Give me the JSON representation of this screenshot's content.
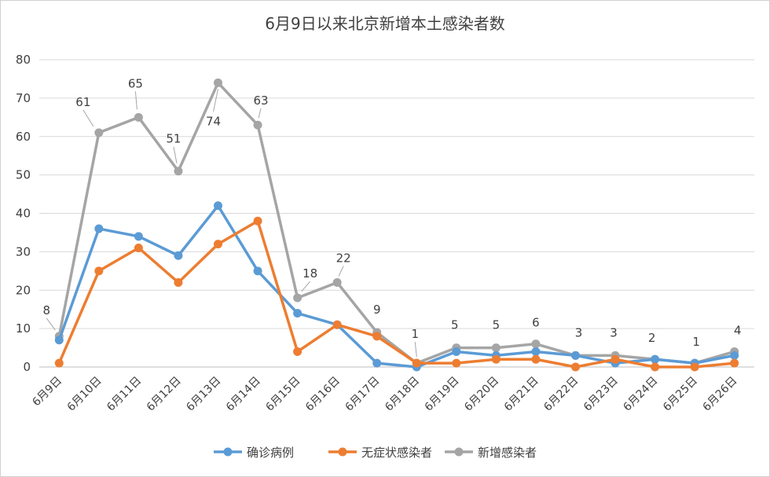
{
  "chart_data": {
    "type": "line",
    "title": "6月9日以来北京新增本土感染者数",
    "categories": [
      "6月9日",
      "6月10日",
      "6月11日",
      "6月12日",
      "6月13日",
      "6月14日",
      "6月15日",
      "6月16日",
      "6月17日",
      "6月18日",
      "6月19日",
      "6月20日",
      "6月21日",
      "6月22日",
      "6月23日",
      "6月24日",
      "6月25日",
      "6月26日"
    ],
    "ylim": [
      0,
      80
    ],
    "yticks": [
      0,
      10,
      20,
      30,
      40,
      50,
      60,
      70,
      80
    ],
    "grid": true,
    "legend_position": "bottom",
    "series": [
      {
        "name": "确诊病例",
        "color": "#5b9bd5",
        "values": [
          7,
          36,
          34,
          29,
          42,
          25,
          14,
          11,
          1,
          0,
          4,
          3,
          4,
          3,
          1,
          2,
          1,
          3
        ]
      },
      {
        "name": "无症状感染者",
        "color": "#ed7d31",
        "values": [
          1,
          25,
          31,
          22,
          32,
          38,
          4,
          11,
          8,
          1,
          1,
          2,
          2,
          0,
          2,
          0,
          0,
          1
        ]
      },
      {
        "name": "新增感染者",
        "color": "#a5a5a5",
        "values": [
          8,
          61,
          65,
          51,
          74,
          63,
          18,
          22,
          9,
          1,
          5,
          5,
          6,
          3,
          3,
          2,
          1,
          4
        ],
        "data_labels": true
      }
    ]
  }
}
